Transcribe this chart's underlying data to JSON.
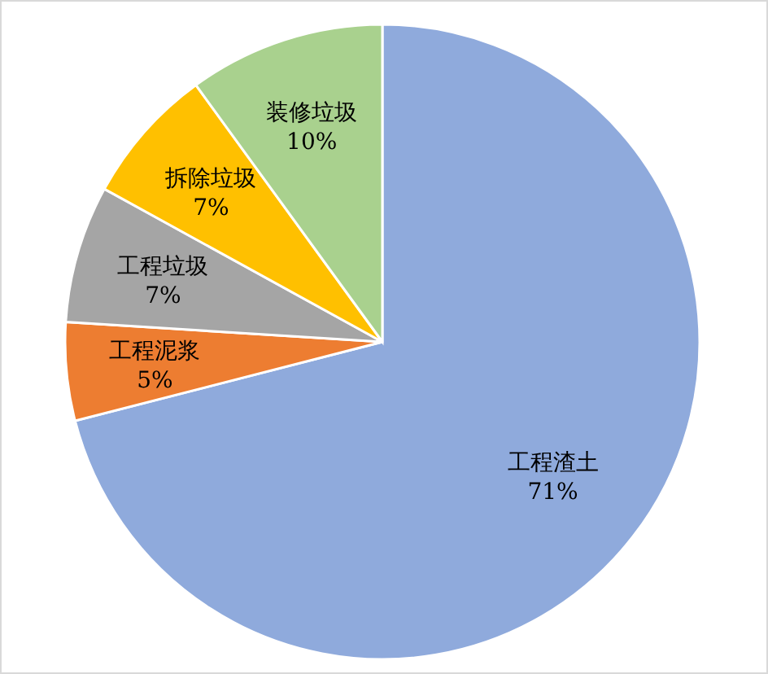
{
  "chart_data": {
    "type": "pie",
    "categories": [
      "工程渣土",
      "工程泥浆",
      "工程垃圾",
      "拆除垃圾",
      "装修垃圾"
    ],
    "values": [
      71,
      5,
      7,
      7,
      10
    ],
    "colors": [
      "#8faadc",
      "#ed7d31",
      "#a5a5a5",
      "#ffc000",
      "#a9d18e"
    ],
    "value_labels": [
      "71%",
      "5%",
      "7%",
      "7%",
      "10%"
    ]
  }
}
